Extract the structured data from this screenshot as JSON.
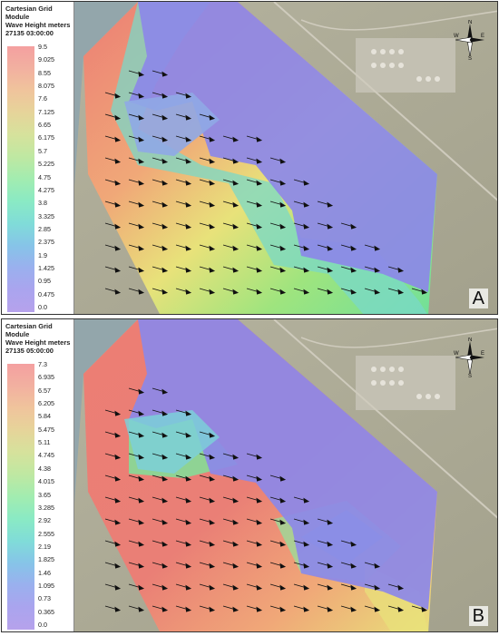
{
  "panels": [
    {
      "id": "A",
      "label": "A",
      "title_line1": "Cartesian Grid Module",
      "title_line2": "Wave Height meters",
      "timestamp": "27135 03:00:00",
      "legend_ticks": [
        "9.5",
        "9.025",
        "8.55",
        "8.075",
        "7.6",
        "7.125",
        "6.65",
        "6.175",
        "5.7",
        "5.225",
        "4.75",
        "4.275",
        "3.8",
        "3.325",
        "2.85",
        "2.375",
        "1.9",
        "1.425",
        "0.95",
        "0.475",
        "0.0"
      ],
      "legend_colors": [
        "#f4a0a0",
        "#f2b0a0",
        "#f0c49c",
        "#e6d49a",
        "#d6e29c",
        "#bfe8a2",
        "#a2ecb0",
        "#8aeac4",
        "#80dcd8",
        "#86c4e8",
        "#9ab0ee",
        "#aaa4ee",
        "#b6a2ec"
      ]
    },
    {
      "id": "B",
      "label": "B",
      "title_line1": "Cartesian Grid Module",
      "title_line2": "Wave Height meters",
      "timestamp": "27135 05:00:00",
      "legend_ticks": [
        "7.3",
        "6.935",
        "6.57",
        "6.205",
        "5.84",
        "5.475",
        "5.11",
        "4.745",
        "4.38",
        "4.015",
        "3.65",
        "3.285",
        "2.92",
        "2.555",
        "2.19",
        "1.825",
        "1.46",
        "1.095",
        "0.73",
        "0.365",
        "0.0"
      ],
      "legend_colors": [
        "#f4a0a0",
        "#f2b0a0",
        "#f0c49c",
        "#e6d49a",
        "#d6e29c",
        "#bfe8a2",
        "#a2ecb0",
        "#8aeac4",
        "#80dcd8",
        "#86c4e8",
        "#9ab0ee",
        "#aaa4ee",
        "#b6a2ec"
      ]
    }
  ],
  "compass_letters": [
    "N",
    "E",
    "S",
    "W"
  ],
  "map_colors": {
    "land": "#9c9a86",
    "land_dark": "#7f8a80",
    "sea_far": "#8fa4ab",
    "harbor_overlay": "#8c88e8",
    "coastal_green": "#6fe09a",
    "cyan": "#6fd6d0",
    "yellow": "#e8e27a",
    "orange": "#f0a878",
    "red": "#ec7e74"
  }
}
